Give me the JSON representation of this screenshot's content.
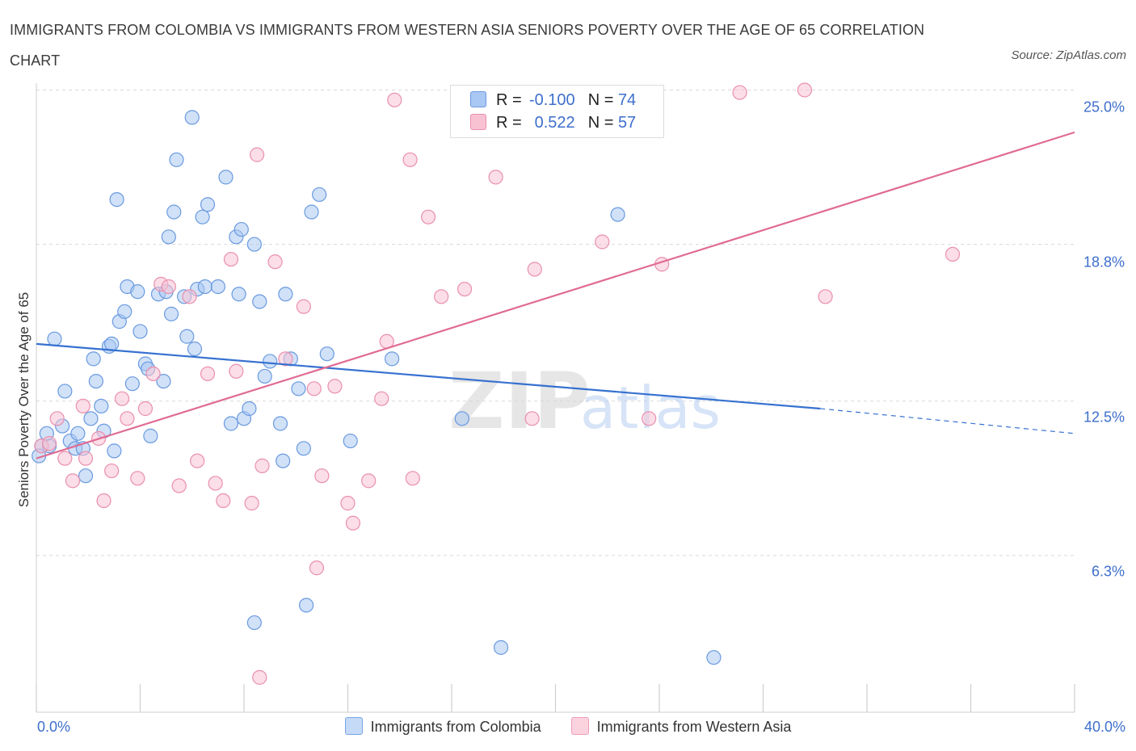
{
  "chart_data": {
    "type": "scatter",
    "title": "IMMIGRANTS FROM COLOMBIA VS IMMIGRANTS FROM WESTERN ASIA SENIORS POVERTY OVER THE AGE OF 65 CORRELATION CHART",
    "source": "Source: ZipAtlas.com",
    "xlabel": "",
    "ylabel": "Seniors Poverty Over the Age of 65",
    "xlim": [
      0,
      40
    ],
    "ylim": [
      0,
      25.6
    ],
    "x_tick_labels": {
      "min": "0.0%",
      "max": "40.0%"
    },
    "y_ticks": [
      {
        "value": 6.3,
        "label": "6.3%"
      },
      {
        "value": 12.5,
        "label": "12.5%"
      },
      {
        "value": 18.8,
        "label": "18.8%"
      },
      {
        "value": 25.0,
        "label": "25.0%"
      }
    ],
    "watermark": "ZIPatlas",
    "legend": {
      "r_label": "R =",
      "n_label": "N =",
      "entries": [
        {
          "name": "Immigrants from Colombia",
          "r": "-0.100",
          "n": "74",
          "color": "#a9c8f3",
          "stroke": "#6a9ae0",
          "line_color": "#3671d0"
        },
        {
          "name": "Immigrants from Western Asia",
          "r": "0.522",
          "n": "57",
          "color": "#f8c2d3",
          "stroke": "#ea8fae",
          "line_color": "#e06b94"
        }
      ]
    },
    "series": [
      {
        "name": "Immigrants from Colombia",
        "trend": {
          "x": [
            0,
            30.2
          ],
          "y": [
            14.8,
            12.2
          ],
          "dashed_to": [
            40,
            11.2
          ]
        },
        "points": [
          [
            0.2,
            10.7
          ],
          [
            0.5,
            10.7
          ],
          [
            0.4,
            11.2
          ],
          [
            0.7,
            15.0
          ],
          [
            1.1,
            12.9
          ],
          [
            1.3,
            10.9
          ],
          [
            1.6,
            11.2
          ],
          [
            1.5,
            10.6
          ],
          [
            1.8,
            10.6
          ],
          [
            1.9,
            9.5
          ],
          [
            2.1,
            11.8
          ],
          [
            2.2,
            14.2
          ],
          [
            2.3,
            13.3
          ],
          [
            2.5,
            12.3
          ],
          [
            2.6,
            11.3
          ],
          [
            2.8,
            14.7
          ],
          [
            3.0,
            10.5
          ],
          [
            3.1,
            20.6
          ],
          [
            3.2,
            15.7
          ],
          [
            3.4,
            16.1
          ],
          [
            3.5,
            17.1
          ],
          [
            3.7,
            13.2
          ],
          [
            3.9,
            16.9
          ],
          [
            4.0,
            15.3
          ],
          [
            4.2,
            14.0
          ],
          [
            4.3,
            13.8
          ],
          [
            4.4,
            11.1
          ],
          [
            4.7,
            16.8
          ],
          [
            4.9,
            13.3
          ],
          [
            5.0,
            16.9
          ],
          [
            5.1,
            19.1
          ],
          [
            5.2,
            16.0
          ],
          [
            5.3,
            20.1
          ],
          [
            5.4,
            22.2
          ],
          [
            5.7,
            16.7
          ],
          [
            5.8,
            15.1
          ],
          [
            6.0,
            23.9
          ],
          [
            6.2,
            17.0
          ],
          [
            6.4,
            19.9
          ],
          [
            6.5,
            17.1
          ],
          [
            6.6,
            20.4
          ],
          [
            7.0,
            17.1
          ],
          [
            7.3,
            21.5
          ],
          [
            7.5,
            11.6
          ],
          [
            7.7,
            19.1
          ],
          [
            7.8,
            16.8
          ],
          [
            7.9,
            19.4
          ],
          [
            8.0,
            11.8
          ],
          [
            8.2,
            12.2
          ],
          [
            8.4,
            18.8
          ],
          [
            8.6,
            16.5
          ],
          [
            8.8,
            13.5
          ],
          [
            9.0,
            14.1
          ],
          [
            9.4,
            11.6
          ],
          [
            9.5,
            10.1
          ],
          [
            9.6,
            16.8
          ],
          [
            9.8,
            14.2
          ],
          [
            10.1,
            13.0
          ],
          [
            10.3,
            10.6
          ],
          [
            10.6,
            20.1
          ],
          [
            10.9,
            20.8
          ],
          [
            11.2,
            14.4
          ],
          [
            12.1,
            10.9
          ],
          [
            13.7,
            14.2
          ],
          [
            16.4,
            11.8
          ],
          [
            17.9,
            2.6
          ],
          [
            22.4,
            20.0
          ],
          [
            26.1,
            2.2
          ],
          [
            10.4,
            4.3
          ],
          [
            8.4,
            3.6
          ],
          [
            0.1,
            10.3
          ],
          [
            1.0,
            11.5
          ],
          [
            2.9,
            14.8
          ],
          [
            6.1,
            14.6
          ]
        ]
      },
      {
        "name": "Immigrants from Western Asia",
        "trend": {
          "x": [
            0,
            40
          ],
          "y": [
            10.2,
            23.3
          ]
        },
        "points": [
          [
            0.2,
            10.7
          ],
          [
            0.5,
            10.8
          ],
          [
            0.8,
            11.8
          ],
          [
            1.1,
            10.2
          ],
          [
            1.4,
            9.3
          ],
          [
            1.8,
            12.3
          ],
          [
            1.9,
            10.2
          ],
          [
            2.4,
            11.0
          ],
          [
            2.6,
            8.5
          ],
          [
            2.9,
            9.7
          ],
          [
            3.3,
            12.6
          ],
          [
            3.5,
            11.8
          ],
          [
            3.9,
            9.4
          ],
          [
            4.2,
            12.2
          ],
          [
            4.5,
            13.6
          ],
          [
            4.8,
            17.2
          ],
          [
            5.1,
            17.1
          ],
          [
            5.5,
            9.1
          ],
          [
            5.9,
            16.7
          ],
          [
            6.2,
            10.1
          ],
          [
            6.6,
            13.6
          ],
          [
            6.9,
            9.2
          ],
          [
            7.2,
            8.5
          ],
          [
            7.5,
            18.2
          ],
          [
            7.7,
            13.7
          ],
          [
            8.3,
            8.4
          ],
          [
            8.5,
            22.4
          ],
          [
            8.7,
            9.9
          ],
          [
            9.2,
            18.1
          ],
          [
            9.6,
            14.2
          ],
          [
            10.3,
            16.3
          ],
          [
            10.7,
            13.0
          ],
          [
            11.0,
            9.5
          ],
          [
            11.5,
            13.1
          ],
          [
            12.0,
            8.4
          ],
          [
            12.2,
            7.6
          ],
          [
            12.8,
            9.3
          ],
          [
            13.3,
            12.6
          ],
          [
            13.5,
            14.9
          ],
          [
            13.8,
            24.6
          ],
          [
            14.4,
            22.2
          ],
          [
            14.5,
            9.4
          ],
          [
            15.1,
            19.9
          ],
          [
            15.6,
            16.7
          ],
          [
            16.5,
            17.0
          ],
          [
            17.7,
            21.5
          ],
          [
            19.1,
            11.8
          ],
          [
            19.2,
            17.8
          ],
          [
            21.8,
            18.9
          ],
          [
            23.6,
            11.8
          ],
          [
            24.1,
            18.0
          ],
          [
            27.1,
            24.9
          ],
          [
            29.6,
            25.0
          ],
          [
            30.4,
            16.7
          ],
          [
            35.3,
            18.4
          ],
          [
            10.8,
            5.8
          ],
          [
            8.6,
            1.4
          ]
        ]
      }
    ]
  }
}
